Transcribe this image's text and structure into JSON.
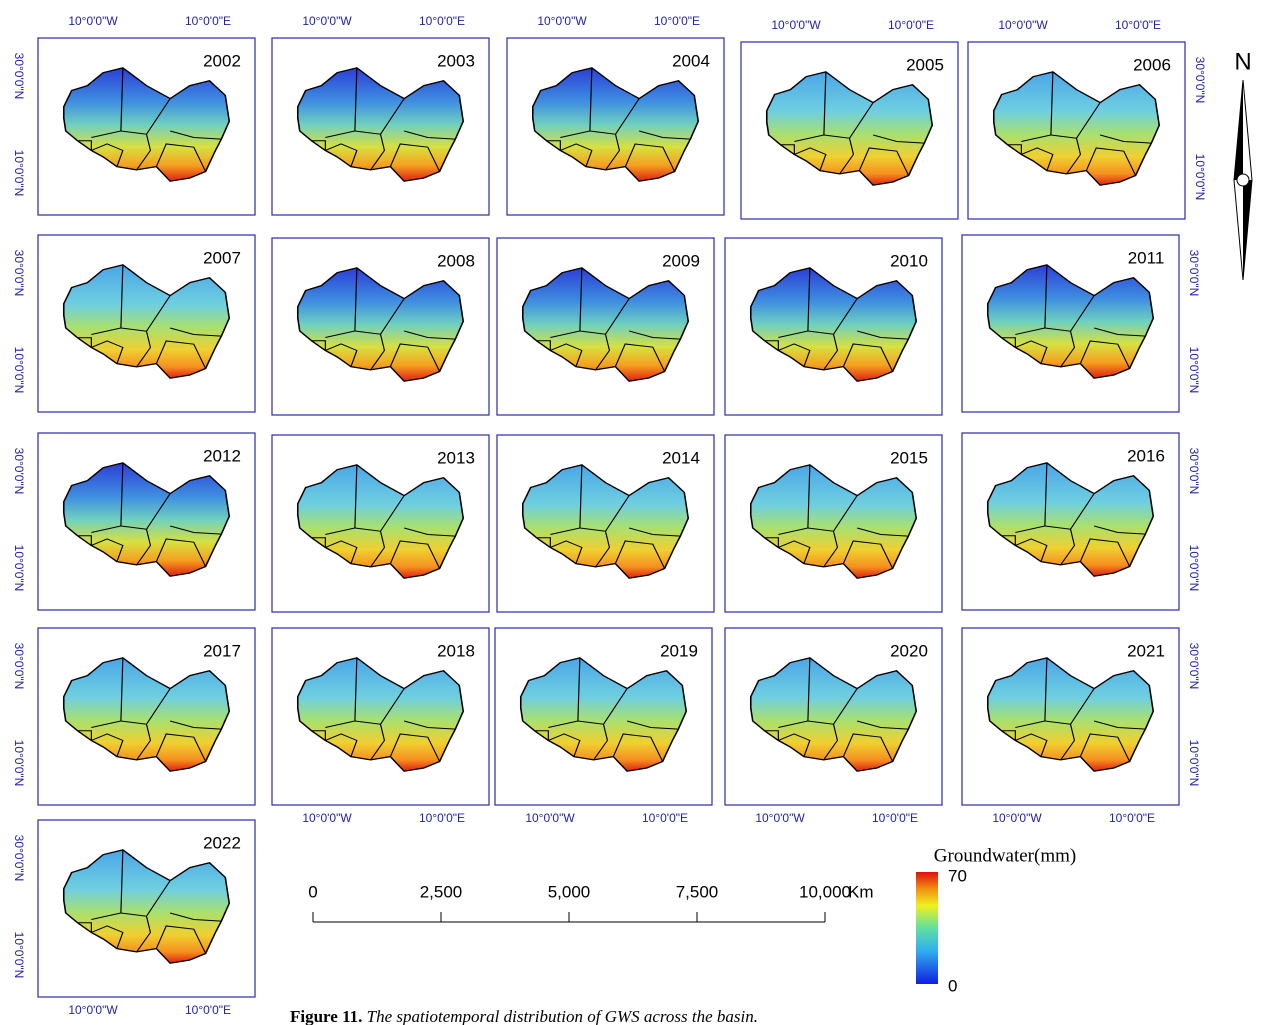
{
  "panels": [
    {
      "year": "2002"
    },
    {
      "year": "2003"
    },
    {
      "year": "2004"
    },
    {
      "year": "2005"
    },
    {
      "year": "2006"
    },
    {
      "year": "2007"
    },
    {
      "year": "2008"
    },
    {
      "year": "2009"
    },
    {
      "year": "2010"
    },
    {
      "year": "2011"
    },
    {
      "year": "2012"
    },
    {
      "year": "2013"
    },
    {
      "year": "2014"
    },
    {
      "year": "2015"
    },
    {
      "year": "2016"
    },
    {
      "year": "2017"
    },
    {
      "year": "2018"
    },
    {
      "year": "2019"
    },
    {
      "year": "2020"
    },
    {
      "year": "2021"
    },
    {
      "year": "2022"
    }
  ],
  "axis_labels": {
    "lon_west": "10°0'0\"W",
    "lon_east": "10°0'0\"E",
    "lat_north": "30°0'0\"N",
    "lat_south": "10°0'0\"N"
  },
  "scale_bar": {
    "labels": [
      "0",
      "2,500",
      "5,000",
      "7,500",
      "10,000"
    ],
    "unit": "Km"
  },
  "legend": {
    "title": "Groundwater(mm)",
    "max": "70",
    "min": "0"
  },
  "north_arrow": "N",
  "caption": {
    "label": "Figure 11.",
    "text": "The spatiotemporal distribution of GWS across the basin."
  }
}
